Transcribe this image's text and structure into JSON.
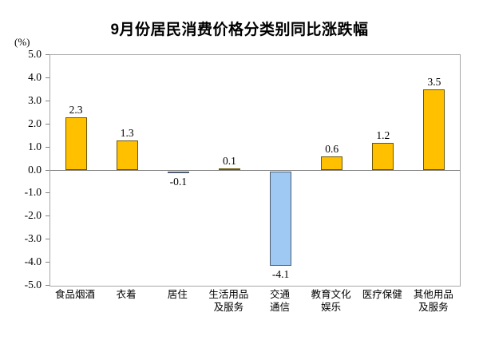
{
  "page": {
    "background": "#ffffff"
  },
  "chart_data": {
    "type": "bar",
    "title": "9月份居民消费价格分类别同比涨跌幅",
    "unit_label": "(%)",
    "categories": [
      "食品烟酒",
      "衣着",
      "居住",
      "生活用品及服务",
      "交通通信",
      "教育文化娱乐",
      "医疗保健",
      "其他用品及服务"
    ],
    "category_lines": [
      [
        "食品烟酒"
      ],
      [
        "衣着"
      ],
      [
        "居住"
      ],
      [
        "生活用品",
        "及服务"
      ],
      [
        "交通",
        "通信"
      ],
      [
        "教育文化",
        "娱乐"
      ],
      [
        "医疗保健"
      ],
      [
        "其他用品",
        "及服务"
      ]
    ],
    "values": [
      2.3,
      1.3,
      -0.1,
      0.1,
      -4.1,
      0.6,
      1.2,
      3.5
    ],
    "value_labels": [
      "2.3",
      "1.3",
      "-0.1",
      "0.1",
      "-4.1",
      "0.6",
      "1.2",
      "3.5"
    ],
    "ylim": [
      -5.0,
      5.0
    ],
    "ytick_step": 1.0,
    "ytick_labels": [
      "5.0",
      "4.0",
      "3.0",
      "2.0",
      "1.0",
      "0.0",
      "-1.0",
      "-2.0",
      "-3.0",
      "-4.0",
      "-5.0"
    ],
    "grid": false,
    "legend": "none",
    "colors": {
      "positive_fill": "#FFC000",
      "positive_border": "#6E5600",
      "negative_fill": "#9FC9F3",
      "negative_border": "#4E5B6E",
      "axis_line": "#808080",
      "plot_border": "#A6A6A6",
      "text": "#000000"
    }
  }
}
